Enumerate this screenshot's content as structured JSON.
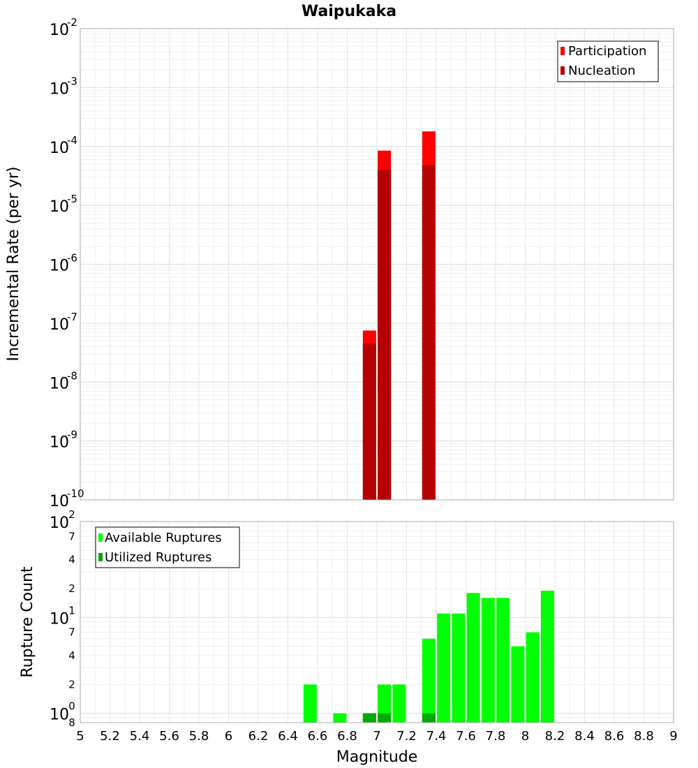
{
  "chart_data": [
    {
      "type": "bar",
      "title": "Waipukaka",
      "xlabel": "",
      "ylabel": "Incremental Rate (per yr)",
      "yscale": "log",
      "ylim": [
        1e-10,
        0.01
      ],
      "xlim": [
        5,
        9
      ],
      "y_tick_labels": [
        {
          "base": "10",
          "exp": "-10"
        },
        {
          "base": "10",
          "exp": "-9"
        },
        {
          "base": "10",
          "exp": "-8"
        },
        {
          "base": "10",
          "exp": "-7"
        },
        {
          "base": "10",
          "exp": "-6"
        },
        {
          "base": "10",
          "exp": "-5"
        },
        {
          "base": "10",
          "exp": "-4"
        },
        {
          "base": "10",
          "exp": "-3"
        },
        {
          "base": "10",
          "exp": "-2"
        }
      ],
      "legend_position": "top-right",
      "grid": true,
      "series": [
        {
          "name": "Participation",
          "color": "#ff0000",
          "points": [
            {
              "x": 6.95,
              "y": 7.5e-08
            },
            {
              "x": 7.05,
              "y": 8.5e-05
            },
            {
              "x": 7.35,
              "y": 0.00018
            }
          ]
        },
        {
          "name": "Nucleation",
          "color": "#b40000",
          "points": [
            {
              "x": 6.95,
              "y": 4.5e-08
            },
            {
              "x": 7.05,
              "y": 4e-05
            },
            {
              "x": 7.35,
              "y": 4.8e-05
            }
          ]
        }
      ]
    },
    {
      "type": "bar",
      "title": "",
      "xlabel": "Magnitude",
      "ylabel": "Rupture Count",
      "yscale": "log",
      "ylim": [
        0.8,
        100
      ],
      "xlim": [
        5,
        9
      ],
      "x_tick_labels": [
        "5",
        "5.2",
        "5.4",
        "5.6",
        "5.8",
        "6",
        "6.2",
        "6.4",
        "6.6",
        "6.8",
        "7",
        "7.2",
        "7.4",
        "7.6",
        "7.8",
        "8",
        "8.2",
        "8.4",
        "8.6",
        "8.8",
        "9"
      ],
      "y_tick_labels": [
        {
          "value": 1,
          "base": "10",
          "exp": "0"
        },
        {
          "value": 10,
          "base": "10",
          "exp": "1"
        },
        {
          "value": 100,
          "base": "10",
          "exp": "2"
        }
      ],
      "y_minor_labels": [
        {
          "value": 0.8,
          "label": "8"
        },
        {
          "value": 2,
          "label": "2"
        },
        {
          "value": 4,
          "label": "4"
        },
        {
          "value": 7,
          "label": "7"
        },
        {
          "value": 20,
          "label": "2"
        },
        {
          "value": 40,
          "label": "4"
        },
        {
          "value": 70,
          "label": "7"
        }
      ],
      "legend_position": "top-left",
      "grid": true,
      "series": [
        {
          "name": "Available Ruptures",
          "color": "#00ff00",
          "points": [
            {
              "x": 6.55,
              "y": 2
            },
            {
              "x": 6.75,
              "y": 1
            },
            {
              "x": 6.95,
              "y": 1
            },
            {
              "x": 7.05,
              "y": 2
            },
            {
              "x": 7.15,
              "y": 2
            },
            {
              "x": 7.35,
              "y": 6
            },
            {
              "x": 7.45,
              "y": 11
            },
            {
              "x": 7.55,
              "y": 11
            },
            {
              "x": 7.65,
              "y": 18
            },
            {
              "x": 7.75,
              "y": 16
            },
            {
              "x": 7.85,
              "y": 16
            },
            {
              "x": 7.95,
              "y": 5
            },
            {
              "x": 8.05,
              "y": 7
            },
            {
              "x": 8.15,
              "y": 19
            }
          ]
        },
        {
          "name": "Utilized Ruptures",
          "color": "#00aa00",
          "points": [
            {
              "x": 6.95,
              "y": 1
            },
            {
              "x": 7.05,
              "y": 1
            },
            {
              "x": 7.35,
              "y": 1
            }
          ]
        }
      ]
    }
  ]
}
